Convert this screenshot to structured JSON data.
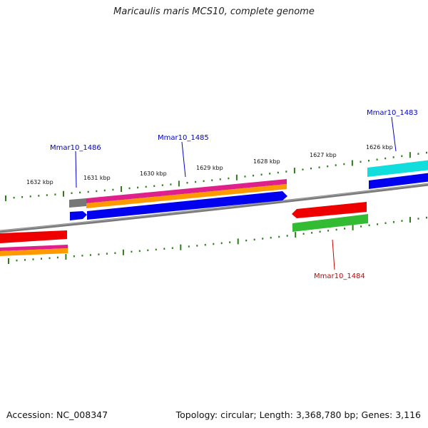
{
  "title": "Maricaulis maris MCS10, complete genome",
  "footer": {
    "accession": "Accession: NC_008347",
    "summary": "Topology: circular; Length: 3,368,780 bp; Genes: 3,116"
  },
  "tick_labels": [
    "1632 kbp",
    "1631 kbp",
    "1630 kbp",
    "1629 kbp",
    "1628 kbp",
    "1627 kbp",
    "1626 kbp"
  ],
  "gene_labels": [
    {
      "text": "Mmar10_1486",
      "color": "#0000cc"
    },
    {
      "text": "Mmar10_1485",
      "color": "#0000cc"
    },
    {
      "text": "Mmar10_1483",
      "color": "#0000cc"
    },
    {
      "text": "Mmar10_1484",
      "color": "#cc0000"
    }
  ],
  "colors": {
    "backbone": "#7a7a7a",
    "tick": "#2e7d1a",
    "blue_feature": "#0000ee",
    "red_feature": "#ee0000",
    "green_feature": "#33bb33",
    "magenta_feature": "#e0208a",
    "orange_feature": "#ff9900",
    "cyan_feature": "#11dddd",
    "gray_feature": "#777777"
  }
}
